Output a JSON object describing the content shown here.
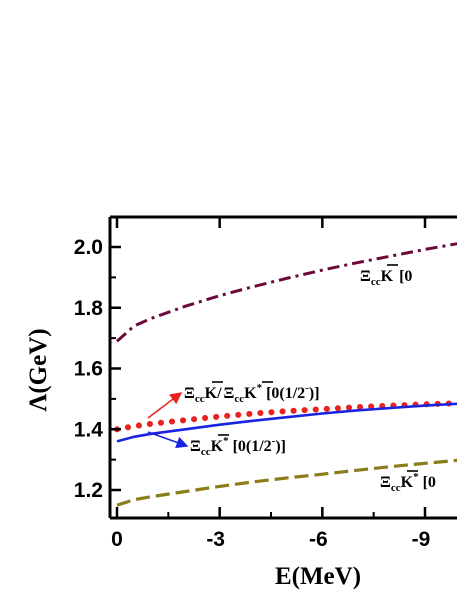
{
  "chart_data": {
    "type": "line",
    "xlabel": "E(MeV)",
    "ylabel": "Λ(GeV)",
    "xlim": [
      0,
      -10
    ],
    "ylim": [
      1.1,
      2.1
    ],
    "x_ticks": [
      0,
      -3,
      -6,
      -9
    ],
    "x_tick_labels": [
      "0",
      "-3",
      "-6",
      "-9"
    ],
    "y_ticks": [
      1.2,
      1.4,
      1.6,
      1.8,
      2.0
    ],
    "y_tick_labels": [
      "1.2",
      "1.4",
      "1.6",
      "1.8",
      "2.0"
    ],
    "grid": false,
    "series": [
      {
        "key": "kbar_top",
        "color": "#6b0a3a",
        "style": "dashdot",
        "x": [
          0,
          -0.5,
          -1,
          -2,
          -3,
          -4,
          -5,
          -6,
          -7,
          -8,
          -9,
          -10
        ],
        "y": [
          1.69,
          1.74,
          1.765,
          1.805,
          1.84,
          1.87,
          1.898,
          1.924,
          1.948,
          1.97,
          1.992,
          2.012
        ]
      },
      {
        "key": "kbar_red",
        "color": "#e8231f",
        "style": "dotted",
        "x": [
          0,
          -0.5,
          -1,
          -2,
          -3,
          -4,
          -5,
          -6,
          -7,
          -8,
          -9,
          -10
        ],
        "y": [
          1.4,
          1.41,
          1.418,
          1.43,
          1.442,
          1.452,
          1.46,
          1.466,
          1.473,
          1.478,
          1.482,
          1.486
        ]
      },
      {
        "key": "kstar_blue",
        "color": "#1a24e0",
        "style": "solid",
        "x": [
          0,
          -0.5,
          -1,
          -2,
          -3,
          -4,
          -5,
          -6,
          -7,
          -8,
          -9,
          -10
        ],
        "y": [
          1.36,
          1.375,
          1.385,
          1.4,
          1.415,
          1.428,
          1.44,
          1.452,
          1.462,
          1.47,
          1.478,
          1.484
        ]
      },
      {
        "key": "kstar_bottom",
        "color": "#8a7d1a",
        "style": "dashed",
        "x": [
          0,
          -0.5,
          -1,
          -2,
          -3,
          -4,
          -5,
          -6,
          -7,
          -8,
          -9,
          -10
        ],
        "y": [
          1.15,
          1.168,
          1.178,
          1.195,
          1.212,
          1.227,
          1.24,
          1.252,
          1.265,
          1.277,
          1.288,
          1.298
        ]
      }
    ],
    "annotations": {
      "top": {
        "xi": "Ξ",
        "sub": "cc",
        "meson": "K",
        "tail": "[0"
      },
      "red": {
        "xi": "Ξ",
        "sub": "cc",
        "meson": "K",
        "slash": "/",
        "xi2": "Ξ",
        "sub2": "cc",
        "meson2": "K",
        "sup2": "*",
        "tail": "[0(1/2",
        "sup_tail": "-",
        "close": ")]"
      },
      "blue": {
        "xi": "Ξ",
        "sub": "cc",
        "meson": "K",
        "sup": "*",
        "tail": "[0(1/2",
        "sup_tail": "-",
        "close": ")]"
      },
      "bottom": {
        "xi": "Ξ",
        "sub": "cc",
        "meson": "K",
        "sup": "*",
        "tail": "[0"
      }
    }
  }
}
